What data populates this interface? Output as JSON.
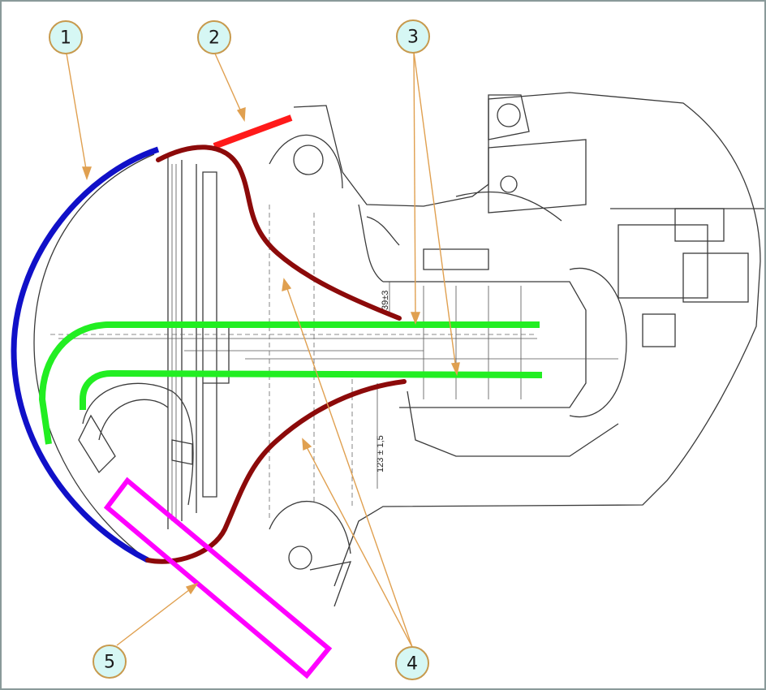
{
  "callouts": [
    {
      "label": "1",
      "target": "blue-outer-fairing"
    },
    {
      "label": "2",
      "target": "red-top-segment"
    },
    {
      "label": "3",
      "target": "green-duct-wall"
    },
    {
      "label": "4",
      "target": "maroon-inner-cowl"
    },
    {
      "label": "5",
      "target": "magenta-lower-frame"
    }
  ],
  "dimensions": {
    "upper": "39±3",
    "lower": "123 ± 1,5"
  },
  "colors": {
    "callout_fill": "#d6f7f4",
    "callout_stroke": "#c79a4e",
    "leader": "#e0a050",
    "blue": "#1010c8",
    "red": "#ff1a1a",
    "green": "#22ee22",
    "maroon": "#8c0a0a",
    "magenta": "#ff00ff",
    "border": "#8a9a9a"
  }
}
